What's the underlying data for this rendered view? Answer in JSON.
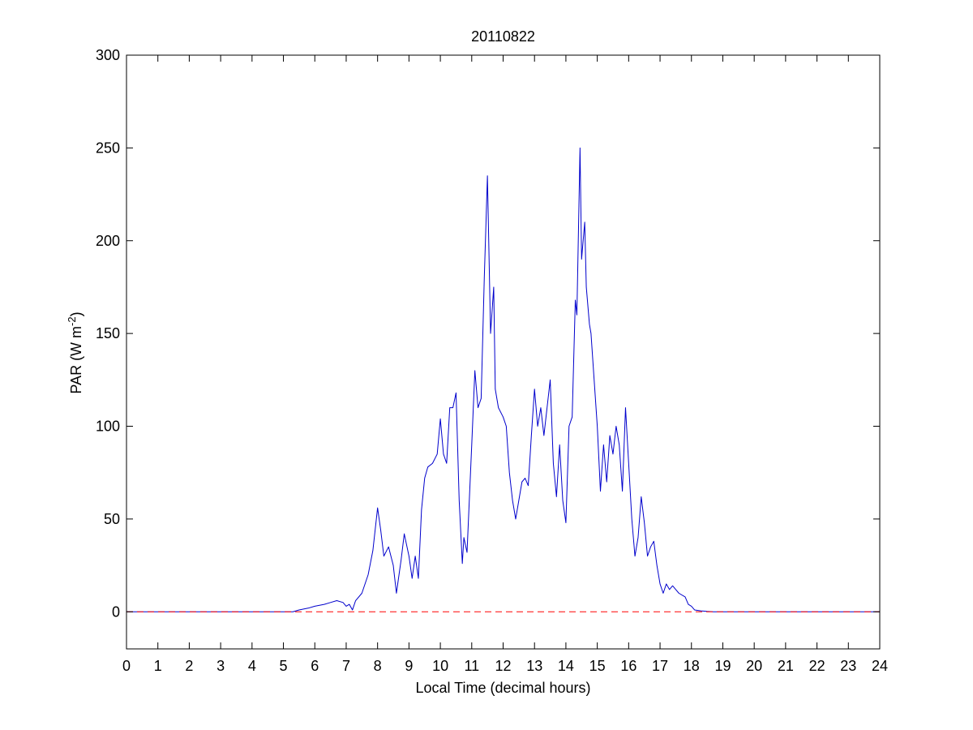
{
  "chart_data": {
    "type": "line",
    "title": "20110822",
    "xlabel": "Local Time (decimal hours)",
    "ylabel": {
      "main": "PAR (W m",
      "sup": "-2",
      "close": ")"
    },
    "xlim": [
      0,
      24
    ],
    "ylim": [
      -20,
      300
    ],
    "xticks": [
      0,
      1,
      2,
      3,
      4,
      5,
      6,
      7,
      8,
      9,
      10,
      11,
      12,
      13,
      14,
      15,
      16,
      17,
      18,
      19,
      20,
      21,
      22,
      23,
      24
    ],
    "yticks": [
      0,
      50,
      100,
      150,
      200,
      250,
      300
    ],
    "grid": false,
    "series": [
      {
        "color": "#0000cc",
        "style": "solid",
        "x": [
          0,
          5.3,
          5.5,
          5.8,
          6.0,
          6.3,
          6.5,
          6.7,
          6.9,
          7.0,
          7.1,
          7.2,
          7.3,
          7.5,
          7.7,
          7.85,
          8.0,
          8.1,
          8.2,
          8.35,
          8.5,
          8.6,
          8.75,
          8.85,
          9.0,
          9.1,
          9.2,
          9.3,
          9.4,
          9.5,
          9.6,
          9.75,
          9.9,
          10.0,
          10.1,
          10.2,
          10.3,
          10.4,
          10.5,
          10.6,
          10.7,
          10.75,
          10.85,
          11.0,
          11.1,
          11.2,
          11.3,
          11.4,
          11.5,
          11.6,
          11.7,
          11.75,
          11.85,
          12.0,
          12.1,
          12.2,
          12.3,
          12.4,
          12.5,
          12.6,
          12.7,
          12.8,
          12.9,
          13.0,
          13.1,
          13.2,
          13.3,
          13.4,
          13.5,
          13.6,
          13.7,
          13.8,
          13.9,
          14.0,
          14.1,
          14.2,
          14.3,
          14.35,
          14.45,
          14.5,
          14.6,
          14.65,
          14.75,
          14.8,
          14.9,
          15.0,
          15.1,
          15.2,
          15.3,
          15.4,
          15.5,
          15.6,
          15.7,
          15.8,
          15.9,
          16.0,
          16.1,
          16.2,
          16.3,
          16.4,
          16.5,
          16.6,
          16.7,
          16.8,
          16.9,
          17.0,
          17.1,
          17.2,
          17.3,
          17.4,
          17.5,
          17.6,
          17.8,
          17.9,
          18.0,
          18.1,
          18.3,
          18.5,
          18.7,
          24
        ],
        "y": [
          0,
          0,
          1,
          2,
          3,
          4,
          5,
          6,
          5,
          3,
          4,
          1,
          6,
          10,
          20,
          33,
          56,
          44,
          30,
          35,
          25,
          10,
          28,
          42,
          30,
          18,
          30,
          18,
          55,
          72,
          78,
          80,
          85,
          104,
          85,
          80,
          110,
          110,
          118,
          60,
          26,
          40,
          32,
          90,
          130,
          110,
          115,
          180,
          235,
          150,
          175,
          120,
          110,
          105,
          100,
          75,
          60,
          50,
          60,
          70,
          72,
          68,
          95,
          120,
          100,
          110,
          95,
          110,
          125,
          80,
          62,
          90,
          60,
          48,
          100,
          105,
          168,
          160,
          250,
          190,
          210,
          175,
          155,
          150,
          125,
          100,
          65,
          90,
          70,
          95,
          85,
          100,
          90,
          65,
          110,
          80,
          50,
          30,
          40,
          62,
          48,
          30,
          35,
          38,
          25,
          15,
          10,
          15,
          12,
          14,
          12,
          10,
          8,
          4,
          3,
          1,
          0.5,
          0.2,
          0,
          0
        ]
      },
      {
        "color": "#ff0000",
        "style": "dashed",
        "x": [
          0,
          24
        ],
        "y": [
          0,
          0
        ]
      }
    ]
  }
}
